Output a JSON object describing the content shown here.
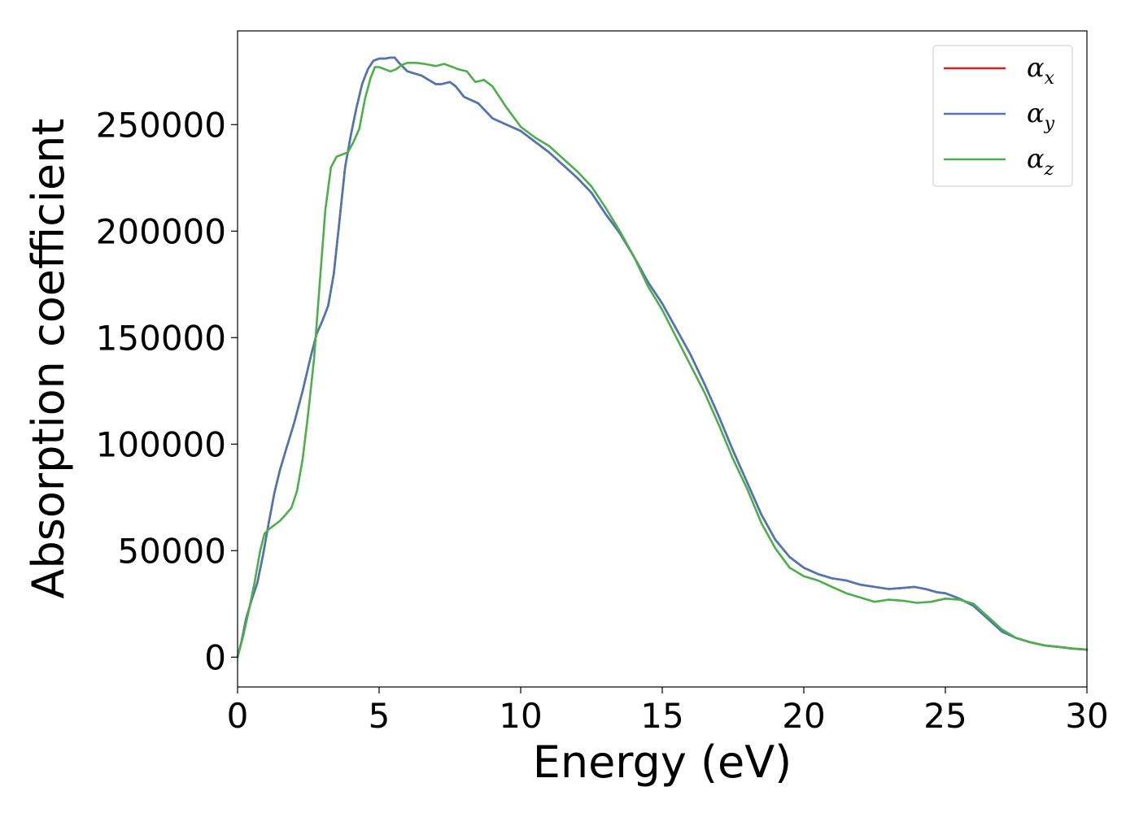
{
  "chart_data": {
    "type": "line",
    "title": "",
    "xlabel": "Energy (eV)",
    "ylabel": "Absorption coefficient",
    "xlim": [
      0,
      30
    ],
    "ylim": [
      -14000,
      294000
    ],
    "xticks": [
      0,
      5,
      10,
      15,
      20,
      25,
      30
    ],
    "yticks": [
      0,
      50000,
      100000,
      150000,
      200000,
      250000
    ],
    "grid": false,
    "legend_position": "top-right",
    "series": [
      {
        "name": "α",
        "subscript": "x",
        "color": "#e41a1c",
        "x": [
          0,
          0.15,
          0.3,
          0.5,
          0.7,
          0.9,
          1.1,
          1.3,
          1.5,
          1.7,
          2.0,
          2.3,
          2.6,
          2.8,
          3.0,
          3.2,
          3.4,
          3.6,
          3.8,
          4.0,
          4.2,
          4.4,
          4.6,
          4.8,
          5.0,
          5.2,
          5.4,
          5.55,
          5.7,
          6.0,
          6.5,
          7.0,
          7.2,
          7.5,
          7.7,
          8.0,
          8.5,
          9.0,
          9.5,
          10.0,
          10.5,
          11.0,
          11.5,
          12.0,
          12.5,
          13.0,
          13.5,
          14.0,
          14.5,
          15.0,
          15.5,
          16.0,
          16.5,
          17.0,
          17.5,
          18.0,
          18.5,
          19.0,
          19.5,
          20.0,
          20.5,
          21.0,
          21.5,
          22.0,
          22.5,
          23.0,
          23.5,
          23.9,
          24.3,
          24.7,
          25.0,
          25.5,
          26.0,
          26.5,
          27.0,
          27.5,
          28.0,
          28.5,
          29.0,
          29.5,
          30.0
        ],
        "values": [
          0,
          8000,
          18000,
          27000,
          35000,
          48000,
          63000,
          77000,
          88000,
          97000,
          110000,
          125000,
          142000,
          152000,
          158000,
          165000,
          180000,
          205000,
          230000,
          245000,
          258000,
          269000,
          276000,
          280000,
          281000,
          281000,
          281500,
          281500,
          279000,
          275000,
          273000,
          269000,
          269000,
          270000,
          268000,
          263000,
          260000,
          253000,
          250000,
          247000,
          242000,
          237000,
          231000,
          225000,
          218000,
          208000,
          199000,
          188000,
          176000,
          166000,
          154000,
          142000,
          128000,
          113000,
          97000,
          82000,
          67000,
          55000,
          47000,
          42000,
          39000,
          37000,
          36000,
          34000,
          33000,
          32000,
          32500,
          33000,
          32000,
          30500,
          30000,
          27500,
          24000,
          18000,
          12000,
          9000,
          7000,
          5500,
          4800,
          4000,
          3500
        ]
      },
      {
        "name": "α",
        "subscript": "y",
        "color": "#4a78b7",
        "x": [
          0,
          0.15,
          0.3,
          0.5,
          0.7,
          0.9,
          1.1,
          1.3,
          1.5,
          1.7,
          2.0,
          2.3,
          2.6,
          2.8,
          3.0,
          3.2,
          3.4,
          3.6,
          3.8,
          4.0,
          4.2,
          4.4,
          4.6,
          4.8,
          5.0,
          5.2,
          5.4,
          5.55,
          5.7,
          6.0,
          6.5,
          7.0,
          7.2,
          7.5,
          7.7,
          8.0,
          8.5,
          9.0,
          9.5,
          10.0,
          10.5,
          11.0,
          11.5,
          12.0,
          12.5,
          13.0,
          13.5,
          14.0,
          14.5,
          15.0,
          15.5,
          16.0,
          16.5,
          17.0,
          17.5,
          18.0,
          18.5,
          19.0,
          19.5,
          20.0,
          20.5,
          21.0,
          21.5,
          22.0,
          22.5,
          23.0,
          23.5,
          23.9,
          24.3,
          24.7,
          25.0,
          25.5,
          26.0,
          26.5,
          27.0,
          27.5,
          28.0,
          28.5,
          29.0,
          29.5,
          30.0
        ],
        "values": [
          0,
          8000,
          18000,
          27000,
          35000,
          48000,
          63000,
          77000,
          88000,
          97000,
          110000,
          125000,
          142000,
          152000,
          158000,
          165000,
          180000,
          205000,
          230000,
          245000,
          258000,
          269000,
          276000,
          280000,
          281000,
          281000,
          281500,
          281500,
          279000,
          275000,
          273000,
          269000,
          269000,
          270000,
          268000,
          263000,
          260000,
          253000,
          250000,
          247000,
          242000,
          237000,
          231000,
          225000,
          218000,
          208000,
          199000,
          188000,
          176000,
          166000,
          154000,
          142000,
          128000,
          113000,
          97000,
          82000,
          67000,
          55000,
          47000,
          42000,
          39000,
          37000,
          36000,
          34000,
          33000,
          32000,
          32500,
          33000,
          32000,
          30500,
          30000,
          27500,
          24000,
          18000,
          12000,
          9000,
          7000,
          5500,
          4800,
          4000,
          3500
        ]
      },
      {
        "name": "α",
        "subscript": "z",
        "color": "#4daf4a",
        "x": [
          0,
          0.2,
          0.4,
          0.6,
          0.8,
          0.95,
          1.1,
          1.3,
          1.5,
          1.7,
          1.9,
          2.1,
          2.3,
          2.5,
          2.7,
          2.9,
          3.1,
          3.3,
          3.5,
          3.7,
          3.9,
          4.1,
          4.3,
          4.5,
          4.7,
          4.85,
          5.0,
          5.2,
          5.4,
          5.6,
          5.8,
          6.0,
          6.3,
          6.6,
          7.0,
          7.3,
          7.6,
          7.8,
          8.1,
          8.4,
          8.7,
          9.0,
          9.5,
          10.0,
          10.5,
          11.0,
          11.5,
          12.0,
          12.5,
          13.0,
          13.5,
          14.0,
          14.5,
          15.0,
          15.5,
          16.0,
          16.5,
          17.0,
          17.5,
          18.0,
          18.5,
          19.0,
          19.5,
          20.0,
          20.5,
          21.0,
          21.5,
          22.0,
          22.5,
          23.0,
          23.5,
          24.0,
          24.5,
          25.0,
          25.5,
          26.0,
          26.5,
          27.0,
          27.5,
          28.0,
          28.5,
          29.0,
          29.5,
          30.0
        ],
        "values": [
          0,
          10000,
          22000,
          35000,
          50000,
          58000,
          60000,
          62000,
          64000,
          67000,
          70000,
          78000,
          93000,
          115000,
          140000,
          175000,
          210000,
          230000,
          235000,
          236000,
          237000,
          242000,
          248000,
          262000,
          272000,
          277000,
          277000,
          276000,
          275000,
          276000,
          278000,
          279000,
          279000,
          278500,
          277500,
          278500,
          277000,
          276000,
          275000,
          270000,
          271000,
          268000,
          258000,
          249000,
          244000,
          240000,
          234000,
          228000,
          221000,
          211000,
          200000,
          188000,
          174000,
          163000,
          150000,
          137000,
          124000,
          109000,
          93000,
          79000,
          63000,
          51000,
          42000,
          38000,
          36000,
          33000,
          30000,
          28000,
          26000,
          27000,
          26500,
          25500,
          26000,
          27500,
          27000,
          25000,
          19000,
          13000,
          9000,
          7000,
          5500,
          4800,
          4000,
          3500
        ]
      }
    ]
  }
}
